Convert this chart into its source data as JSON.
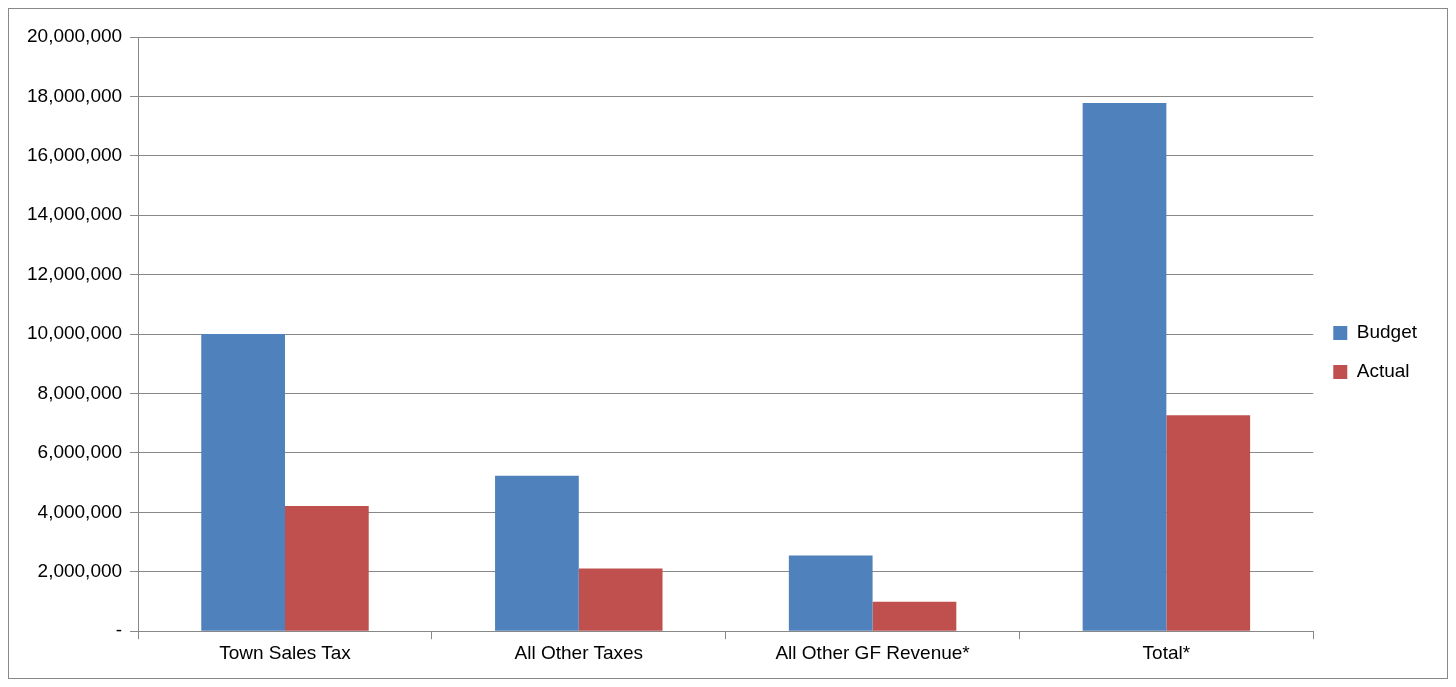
{
  "chart_data": {
    "type": "bar",
    "categories": [
      "Town Sales Tax",
      "All Other Taxes",
      "All Other GF Revenue*",
      "Total*"
    ],
    "series": [
      {
        "name": "Budget",
        "color": "#4f81bd",
        "values": [
          10000000,
          5230000,
          2550000,
          17780000
        ]
      },
      {
        "name": "Actual",
        "color": "#c0504d",
        "values": [
          4210000,
          2110000,
          990000,
          7270000
        ]
      }
    ],
    "ylim": [
      0,
      20000000
    ],
    "yticks": [
      {
        "value": 0,
        "label": "-"
      },
      {
        "value": 2000000,
        "label": "2,000,000"
      },
      {
        "value": 4000000,
        "label": "4,000,000"
      },
      {
        "value": 6000000,
        "label": "6,000,000"
      },
      {
        "value": 8000000,
        "label": "8,000,000"
      },
      {
        "value": 10000000,
        "label": "10,000,000"
      },
      {
        "value": 12000000,
        "label": "12,000,000"
      },
      {
        "value": 14000000,
        "label": "14,000,000"
      },
      {
        "value": 16000000,
        "label": "16,000,000"
      },
      {
        "value": 18000000,
        "label": "18,000,000"
      },
      {
        "value": 20000000,
        "label": "20,000,000"
      }
    ],
    "grid": "y",
    "legend": "right"
  }
}
